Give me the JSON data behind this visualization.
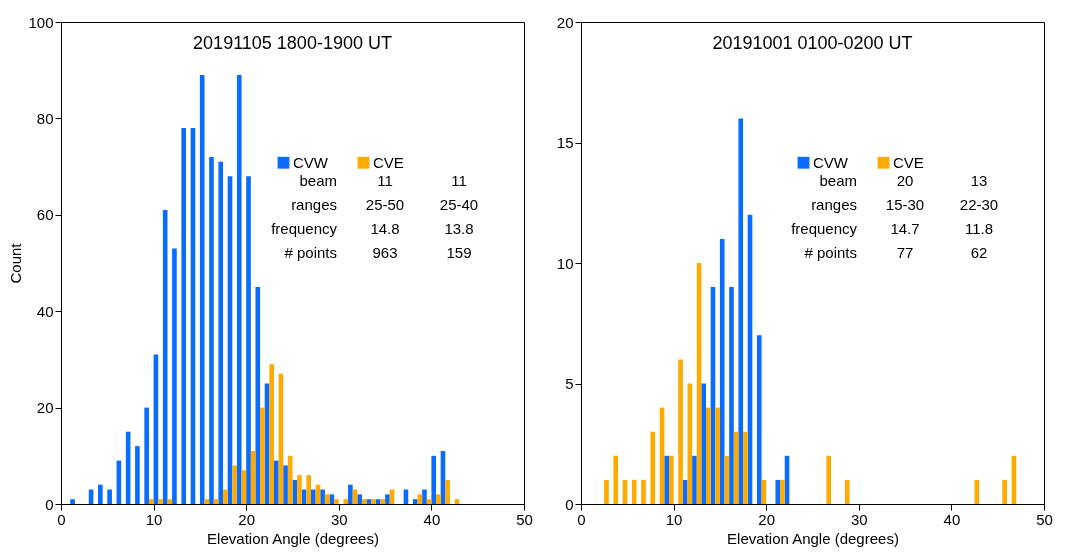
{
  "chart_data": [
    {
      "type": "histogram",
      "title": "20191105  1800-1900 UT",
      "xlabel": "Elevation Angle (degrees)",
      "ylabel": "Count",
      "bins": [
        0,
        1,
        2,
        3,
        4,
        5,
        6,
        7,
        8,
        9,
        10,
        11,
        12,
        13,
        14,
        15,
        16,
        17,
        18,
        19,
        20,
        21,
        22,
        23,
        24,
        25,
        26,
        27,
        28,
        29,
        30,
        31,
        32,
        33,
        34,
        35,
        36,
        37,
        38,
        39,
        40,
        41,
        42,
        43,
        44,
        45,
        46,
        47,
        48,
        49,
        50
      ],
      "series": [
        {
          "name": "CVW",
          "color": "#0a6cff",
          "values": [
            0,
            1,
            0,
            3,
            4,
            3,
            9,
            15,
            12,
            20,
            31,
            61,
            53,
            78,
            78,
            89,
            72,
            71,
            68,
            89,
            68,
            45,
            25,
            9,
            8,
            5,
            3,
            3,
            3,
            2,
            0,
            4,
            2,
            1,
            1,
            2,
            0,
            3,
            1,
            3,
            10,
            11,
            0,
            0,
            0,
            0,
            0,
            0,
            0,
            0
          ]
        },
        {
          "name": "CVE",
          "color": "#ffaa00",
          "values": [
            0,
            0,
            0,
            0,
            0,
            0,
            0,
            0,
            0,
            1,
            1,
            1,
            0,
            0,
            0,
            1,
            1,
            3,
            8,
            7,
            11,
            20,
            29,
            27,
            10,
            6,
            6,
            4,
            2,
            1,
            1,
            3,
            1,
            1,
            1,
            3,
            0,
            0,
            2,
            1,
            2,
            5,
            1,
            0,
            0,
            0,
            0,
            0,
            0,
            0
          ]
        }
      ],
      "xlim": [
        0,
        50
      ],
      "xticks": [
        0,
        10,
        20,
        30,
        40,
        50
      ],
      "ylim": [
        0,
        100
      ],
      "yticks": [
        0,
        20,
        40,
        60,
        80,
        100
      ],
      "legend": "right",
      "annotations": [
        "beam",
        "11",
        "11",
        "ranges",
        "25-50",
        "25-40",
        "frequency",
        "14.8",
        "13.8",
        "# points",
        "963",
        "159"
      ]
    },
    {
      "type": "histogram",
      "title": "20191001  0100-0200 UT",
      "xlabel": "Elevation Angle (degrees)",
      "bins": [
        0,
        1,
        2,
        3,
        4,
        5,
        6,
        7,
        8,
        9,
        10,
        11,
        12,
        13,
        14,
        15,
        16,
        17,
        18,
        19,
        20,
        21,
        22,
        23,
        24,
        25,
        26,
        27,
        28,
        29,
        30,
        31,
        32,
        33,
        34,
        35,
        36,
        37,
        38,
        39,
        40,
        41,
        42,
        43,
        44,
        45,
        46,
        47,
        48,
        49,
        50
      ],
      "series": [
        {
          "name": "CVW",
          "color": "#0a6cff",
          "values": [
            0,
            0,
            0,
            0,
            0,
            0,
            0,
            0,
            0,
            2,
            0,
            1,
            2,
            5,
            9,
            11,
            9,
            16,
            12,
            7,
            0,
            1,
            2,
            0,
            0,
            0,
            0,
            0,
            0,
            0,
            0,
            0,
            0,
            0,
            0,
            0,
            0,
            0,
            0,
            0,
            0,
            0,
            0,
            0,
            0,
            0,
            0,
            0,
            0,
            0
          ]
        },
        {
          "name": "CVE",
          "color": "#ffaa00",
          "values": [
            0,
            0,
            1,
            2,
            1,
            1,
            1,
            3,
            4,
            2,
            6,
            5,
            10,
            4,
            4,
            2,
            3,
            3,
            0,
            1,
            0,
            1,
            0,
            0,
            0,
            0,
            2,
            0,
            1,
            0,
            0,
            0,
            0,
            0,
            0,
            0,
            0,
            0,
            0,
            0,
            0,
            0,
            1,
            0,
            0,
            1,
            2,
            0,
            0,
            0
          ]
        }
      ],
      "xlim": [
        0,
        50
      ],
      "xticks": [
        0,
        10,
        20,
        30,
        40,
        50
      ],
      "ylim": [
        0,
        20
      ],
      "yticks": [
        0,
        5,
        10,
        15,
        20
      ],
      "legend": "right",
      "annotations": [
        "beam",
        "20",
        "13",
        "ranges",
        "15-30",
        "22-30",
        "frequency",
        "14.7",
        "11.8",
        "# points",
        "77",
        "62"
      ]
    }
  ]
}
